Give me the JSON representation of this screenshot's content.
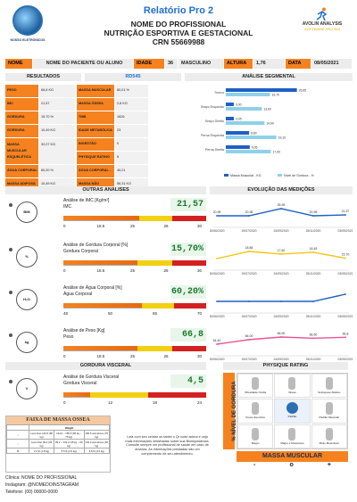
{
  "header": {
    "title": "Relatório Pro 2",
    "professional": "NOME DO PROFISSIONAL",
    "specialty": "NUTRIÇÃO ESPORTIVA E GESTACIONAL",
    "crn": "CRN 55669988",
    "left_logo_caption": "NOSSO ELETRÔNICOS",
    "right_logo_brand": "AVOLIN ANALYSIS",
    "right_logo_soft": "SOFTWARE PRO 602"
  },
  "patient": {
    "name_label": "NOME",
    "name_value": "NOME DO PACIENTE OU ALUNO",
    "age_label": "IDADE",
    "age_value": "36",
    "sex_value": "MASCULINO",
    "height_label": "ALTURA",
    "height_value": "1,76",
    "date_label": "DATA",
    "date_value": "08/05/2021"
  },
  "results": {
    "heading": "RESULTADOS",
    "device": "RD545",
    "rows": [
      {
        "l1": "PESO",
        "v1": "66,8 KG",
        "l2": "MASSA MUSCULAR",
        "v2": "80,01 %"
      },
      {
        "l1": "IMC",
        "v1": "21,57",
        "l2": "MASSA ÓSSEA",
        "v2": "2,8 KG"
      },
      {
        "l1": "GORDURA CORPORAL",
        "v1": "15,70 %",
        "l2": "TMB",
        "v2": "1626"
      },
      {
        "l1": "GORDURA CORPORAL - KG",
        "v1": "10,49 KG",
        "l2": "IDADE METABÓLICA",
        "v2": "23"
      },
      {
        "l1": "MASSA MUSCULAR ESQUELÉTICA",
        "v1": "32,07 KG",
        "l2": "INGESTÃO CALÓRICA",
        "v2": "0"
      },
      {
        "l1": "",
        "v1": "",
        "l2": "PHYSIQUE RATING",
        "v2": "5"
      },
      {
        "l1": "ÁGUA CORPORAL %",
        "v1": "60,20 %",
        "l2": "ÁGUA CORPORAL - KG",
        "v2": "40,21"
      },
      {
        "l1": "MASSA ADIPOSA",
        "v1": "10,49 KG",
        "l2": "MASSA NÃO ADIPOSA",
        "v2": "56,31 KG"
      }
    ]
  },
  "segmental": {
    "heading": "ANÁLISE SEGMENTAL",
    "legend_a": "Massa Muscular - KG",
    "legend_b": "Nível de Gordura - %",
    "segments": [
      {
        "label": "Tronco",
        "muscle": 26.85,
        "fat": 16.7,
        "muscle_text": "26,85",
        "fat_text": "16,70"
      },
      {
        "label": "Braço Esquerdo",
        "muscle": 3.0,
        "fat": 13.6,
        "muscle_text": "3,00",
        "fat_text": "13,60"
      },
      {
        "label": "Braço Direito",
        "muscle": 3.05,
        "fat": 14.6,
        "muscle_text": "3,05",
        "fat_text": "14,60"
      },
      {
        "label": "Perna Esquerda",
        "muscle": 8.8,
        "fat": 19.1,
        "muscle_text": "8,80",
        "fat_text": "19,10"
      },
      {
        "label": "Perna Direita",
        "muscle": 9.05,
        "fat": 17.0,
        "muscle_text": "9,05",
        "fat_text": "17,00"
      }
    ],
    "color_muscle": "#1f5fc4",
    "color_fat": "#8fd0ea"
  },
  "sections": {
    "other": "OUTRAS ANALISES",
    "evolution": "EVOLUÇÃO DAS MEDIÇÕES",
    "visceral": "GORDURA VISCERAL",
    "physique": "PHYSIQUE RATING"
  },
  "gauges": [
    {
      "icon": "BMI",
      "title": "Análise de IMC [Kg/m²]",
      "sub": "IMC",
      "value": "21,57",
      "ticks": [
        "0",
        "18.5",
        "25",
        "26",
        "30"
      ],
      "fill": 0.53
    },
    {
      "icon": "%",
      "title": "Análise de Gordura Corporal [%]",
      "sub": "Gordura Corporal",
      "value": "15,70%",
      "ticks": [
        "0",
        "18.5",
        "25",
        "26",
        "30"
      ],
      "fill": 0.52
    },
    {
      "icon": "H₂O",
      "title": "Análise de Água Corporal [%]",
      "sub": "Água Corporal",
      "value": "60,20%",
      "ticks": [
        "48",
        "50",
        "65",
        "70"
      ],
      "fill": 0.55
    },
    {
      "icon": "kg",
      "title": "Análise de Peso [Kg]",
      "sub": "Peso",
      "value": "66,8",
      "ticks": [
        "0",
        "18.5",
        "25",
        "26",
        "30"
      ],
      "fill": 0.52
    },
    {
      "icon": "V",
      "title": "Análise de Gordura Visceral",
      "sub": "Gordura Visceral",
      "value": "4,5",
      "ticks": [
        "0",
        "12",
        "18",
        "24"
      ],
      "fill": 0.19
    }
  ],
  "evolution": {
    "dates": [
      "30/06/2020",
      "19/07/2020",
      "24/09/2020",
      "25/11/2020",
      "03/05/2021"
    ],
    "series": [
      {
        "values": [
          20.98,
          20.98,
          25.95,
          20.98,
          21.57
        ],
        "labels": [
          "20,98",
          "20,98",
          "25,95",
          "20,98",
          "21,57"
        ],
        "color": "#1f5fc4"
      },
      {
        "values": [
          15.5,
          18.85,
          17.6,
          18.45,
          15.7
        ],
        "labels": [
          "",
          "18,85",
          "17,60",
          "18,45",
          "15,70"
        ],
        "color": "#f5c518"
      },
      {
        "values": [
          60,
          60,
          60,
          60,
          60.2
        ],
        "labels": [
          "",
          "",
          "",
          "",
          ""
        ],
        "color": "#1f5fc4"
      },
      {
        "values": [
          64.4,
          66,
          66.9,
          66.5,
          66.8
        ],
        "labels": [
          "64,40",
          "66,00",
          "66,90",
          "66,50",
          "66,8"
        ],
        "color": "#e8559a"
      }
    ]
  },
  "ossea": {
    "title": "FAIXA DE MASSA OSSEA",
    "header_weight": "Weight",
    "rows": [
      [
        "Less than 143.6 (65 kg)",
        "143.6 ~ 165.5 (65 kg ~ 75 kg)",
        "165.5 and above (75 kg)"
      ],
      [
        "Less than 99.2 (45 kg)",
        "99.2 ~ 132.2 (45 kg ~ 60 kg)",
        "132.2 and above (60 kg)"
      ],
      [
        "2.2 lb (1.8 kg)",
        "5.5 lb (2.5 kg)",
        "6.6 lb (3.0 kg)"
      ]
    ]
  },
  "note": "Leia com seu celular ou tablet o Qr code acima e veja mais informações detalhadas sobre sua Bioimpedância. Consulte sempre um profissional de saúde em caso de dúvidas. As informações prestadas são um complemento de seu atendimento.",
  "physique": {
    "vertical": "% NÍVEL DE GORDURA",
    "bottom": "MASSA MUSCULAR",
    "minus": "-",
    "circle": "o",
    "plus": "+",
    "cells": [
      "Obesidade Oculta",
      "Obeso",
      "Sobrepeso Atlético",
      "Pouco Exercício",
      "Padrão",
      "Padrão Muscular",
      "Magro",
      "Magro e Musculoso",
      "Muito Musculoso"
    ],
    "selected": 4
  },
  "footer": {
    "clinic": "Clínica: NOME DO PROFISSIONAL",
    "instagram": "Instagram: @NOMEDOINSTAGRAM",
    "phone": "Telefone: (00) 00000-0000"
  },
  "colors": {
    "accent": "#f5821f",
    "title_blue": "#1f6fd6",
    "good_green": "#1a7a2e"
  }
}
